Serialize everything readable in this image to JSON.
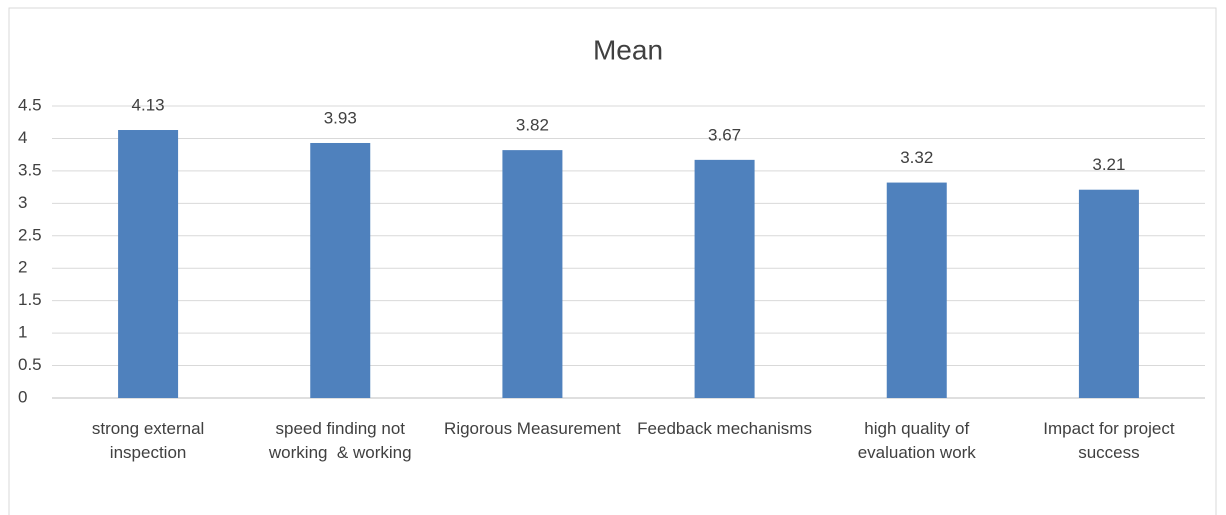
{
  "chart_data": {
    "type": "bar",
    "title": "Mean",
    "categories": [
      "strong external inspection",
      "speed finding not working  & working",
      "Rigorous Measurement",
      "Feedback mechanisms",
      "high quality of evaluation work",
      "Impact for project success"
    ],
    "values": [
      4.13,
      3.93,
      3.82,
      3.67,
      3.32,
      3.21
    ],
    "color": "#4f81bd",
    "ylim": [
      0,
      4.5
    ],
    "yticks": [
      0,
      0.5,
      1,
      1.5,
      2,
      2.5,
      3,
      3.5,
      4,
      4.5
    ],
    "grid": true,
    "data_labels": true
  }
}
